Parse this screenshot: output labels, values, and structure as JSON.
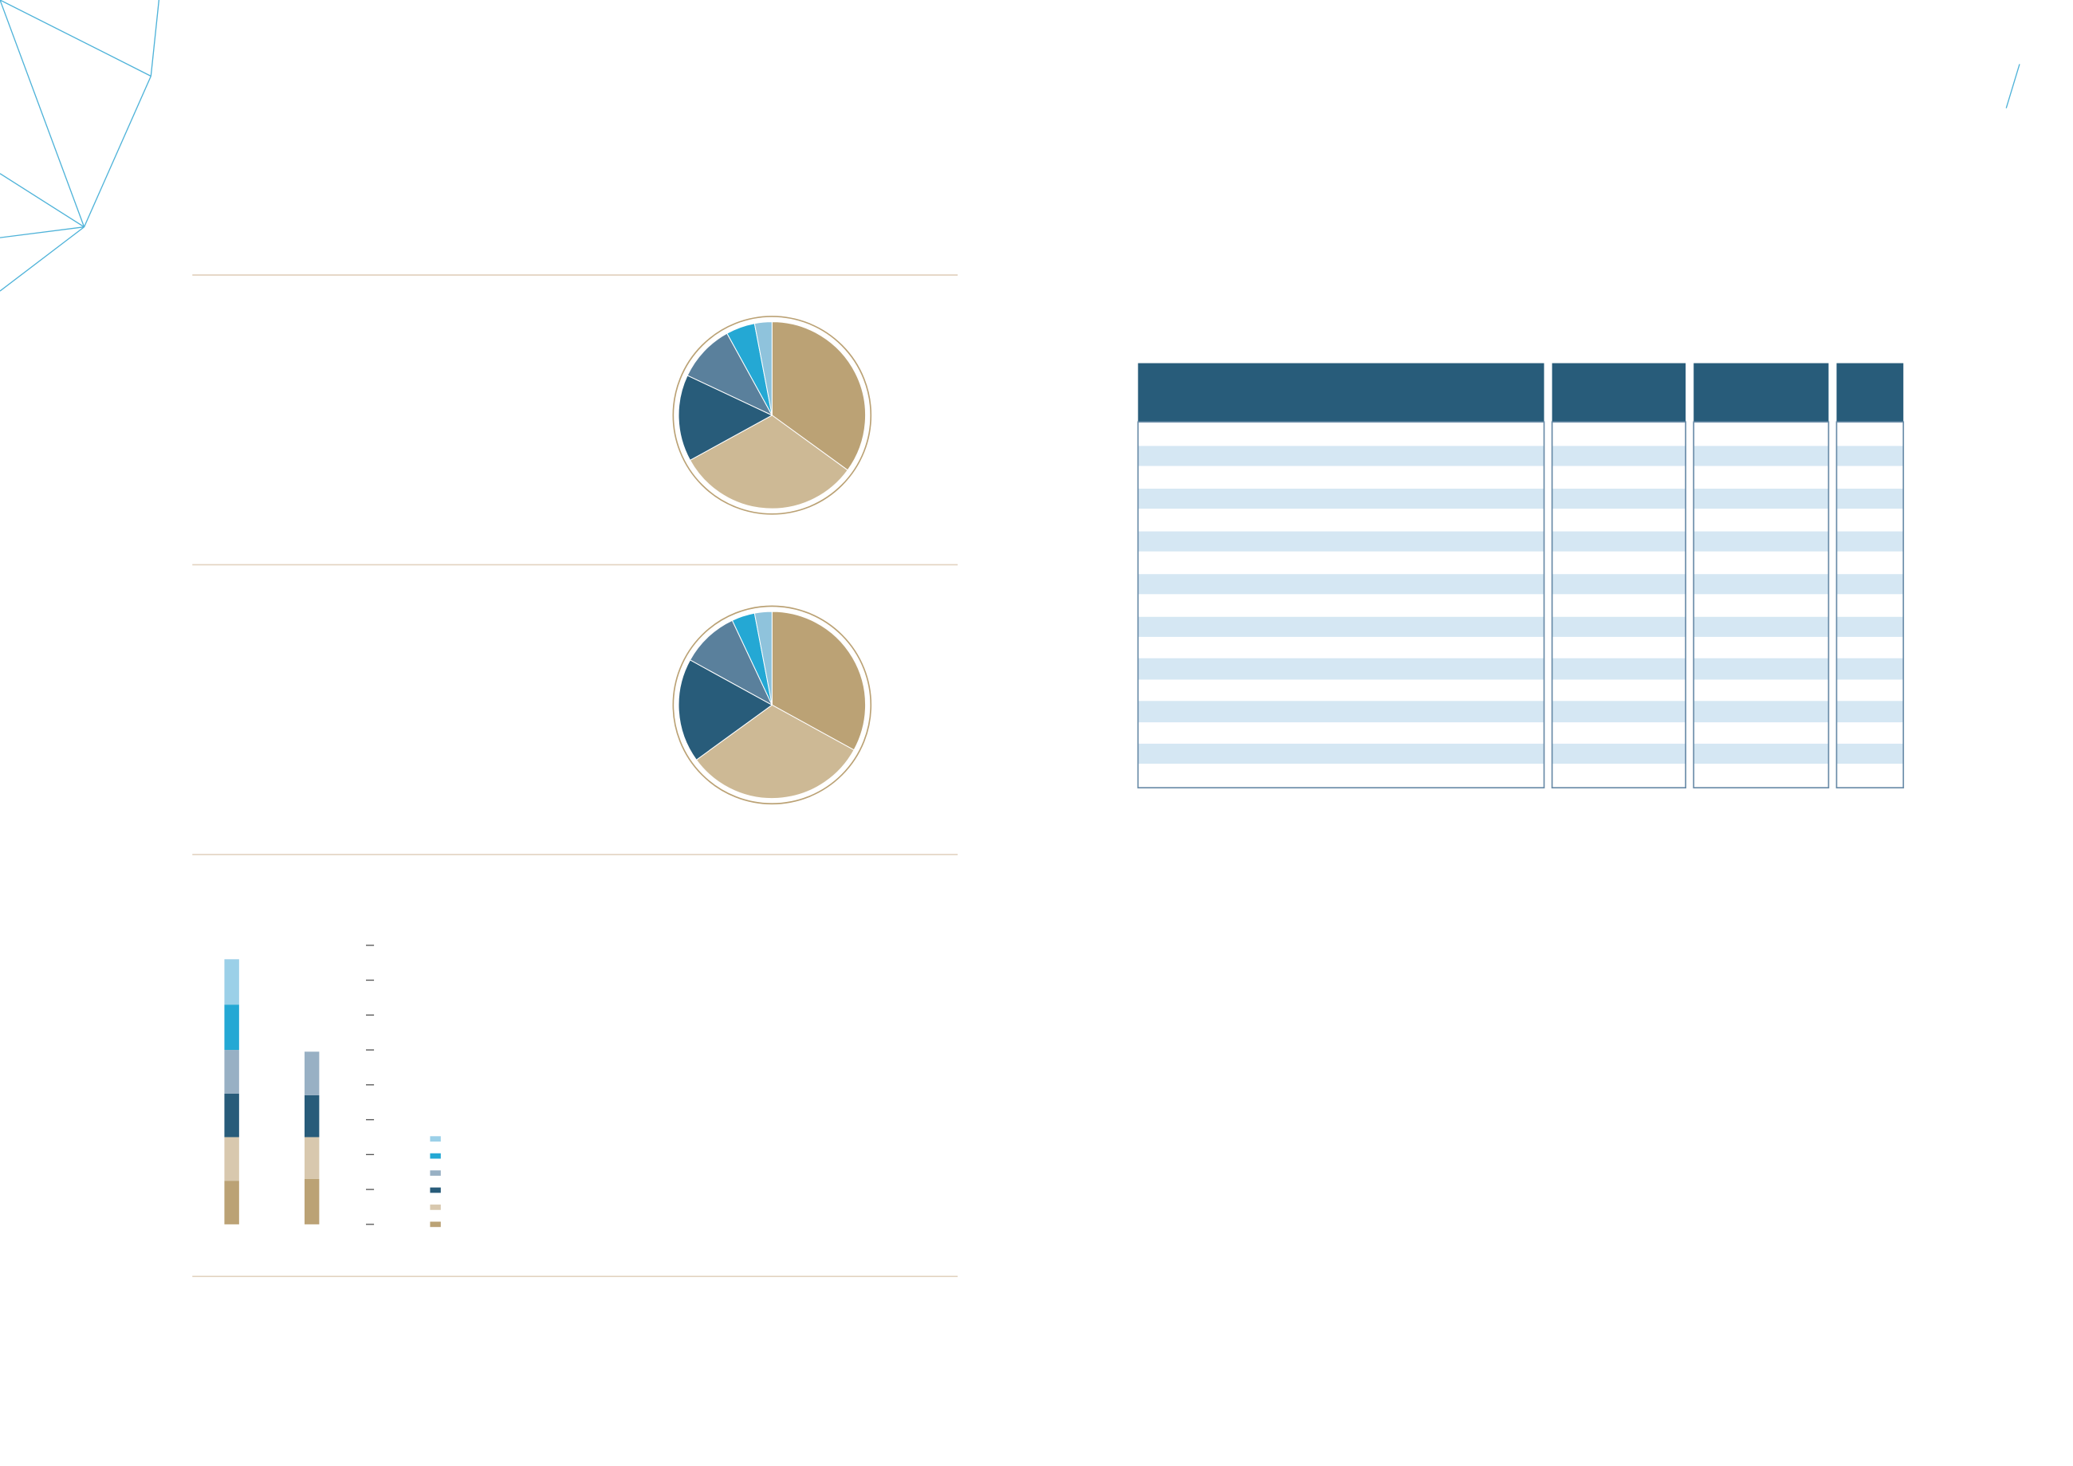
{
  "chart_data": [
    {
      "type": "pie",
      "values": [
        35,
        32,
        15,
        10,
        5,
        3
      ],
      "colors": [
        "#bba275",
        "#cdb995",
        "#285c7a",
        "#5a809c",
        "#24a8d4",
        "#8fc3dc"
      ]
    },
    {
      "type": "pie",
      "values": [
        33,
        32,
        18,
        10,
        4,
        3
      ],
      "colors": [
        "#bba275",
        "#cdb995",
        "#285c7a",
        "#5a809c",
        "#24a8d4",
        "#8fc3dc"
      ]
    },
    {
      "type": "bar",
      "stacked": true,
      "categories": [
        null,
        null
      ],
      "ylim": [
        0,
        8
      ],
      "yticks": [
        0,
        1,
        2,
        3,
        4,
        5,
        6,
        7,
        8
      ],
      "legend": true,
      "series": [
        {
          "color": "#bba275",
          "values": [
            1.25,
            1.3
          ]
        },
        {
          "color": "#d8c8ae",
          "values": [
            1.25,
            1.2
          ]
        },
        {
          "color": "#285c7a",
          "values": [
            1.25,
            1.2
          ]
        },
        {
          "color": "#98b0c4",
          "values": [
            1.25,
            1.25
          ]
        },
        {
          "color": "#24a8d4",
          "values": [
            1.3,
            0
          ]
        },
        {
          "color": "#9bd0e8",
          "values": [
            1.3,
            0
          ]
        }
      ]
    }
  ]
}
